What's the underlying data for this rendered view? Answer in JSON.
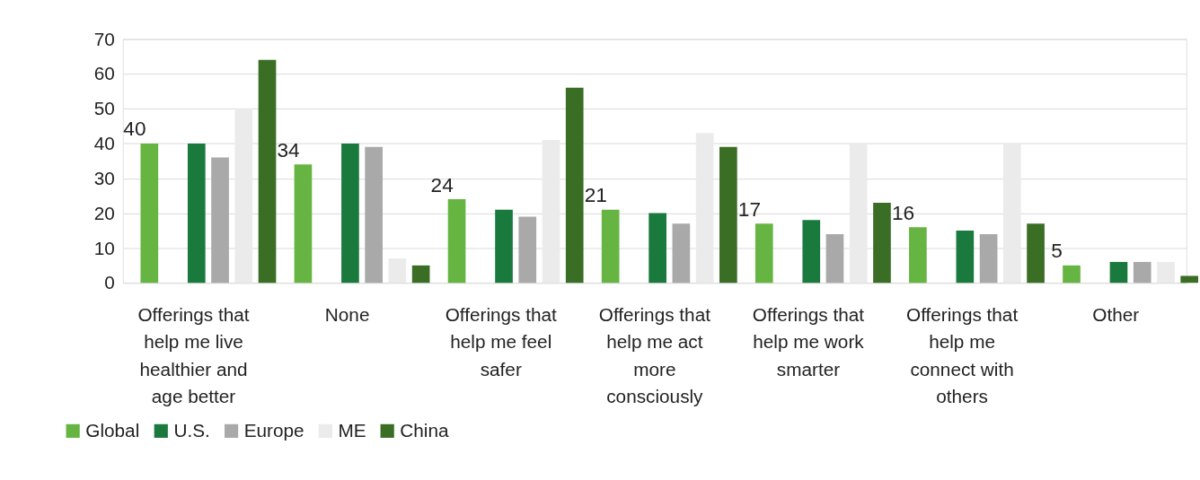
{
  "chart_data": {
    "type": "bar",
    "categories": [
      "Offerings that help me live healthier and age better",
      "None",
      "Offerings that help me feel safer",
      "Offerings that help me act more consciously",
      "Offerings that help me work smarter",
      "Offerings that help me connect with others",
      "Other"
    ],
    "series": [
      {
        "name": "Global",
        "color": "#66b543",
        "values": [
          40,
          34,
          24,
          21,
          17,
          16,
          5
        ],
        "value_labels": [
          "40",
          "34",
          "24",
          "21",
          "17",
          "16",
          "5"
        ]
      },
      {
        "name": "U.S.",
        "color": "#1a7a3e",
        "values": [
          40,
          40,
          21,
          20,
          18,
          15,
          6
        ]
      },
      {
        "name": "Europe",
        "color": "#a9a9a9",
        "values": [
          36,
          39,
          19,
          17,
          14,
          14,
          6
        ]
      },
      {
        "name": "ME",
        "color": "#ebebeb",
        "values": [
          50,
          7,
          41,
          43,
          40,
          40,
          6
        ]
      },
      {
        "name": "China",
        "color": "#3b6e25",
        "values": [
          64,
          5,
          56,
          39,
          23,
          17,
          2
        ]
      }
    ],
    "ylim": [
      0,
      70
    ],
    "yticks": [
      0,
      10,
      20,
      30,
      40,
      50,
      60,
      70
    ],
    "grid": "y",
    "legend": "bottom left"
  }
}
